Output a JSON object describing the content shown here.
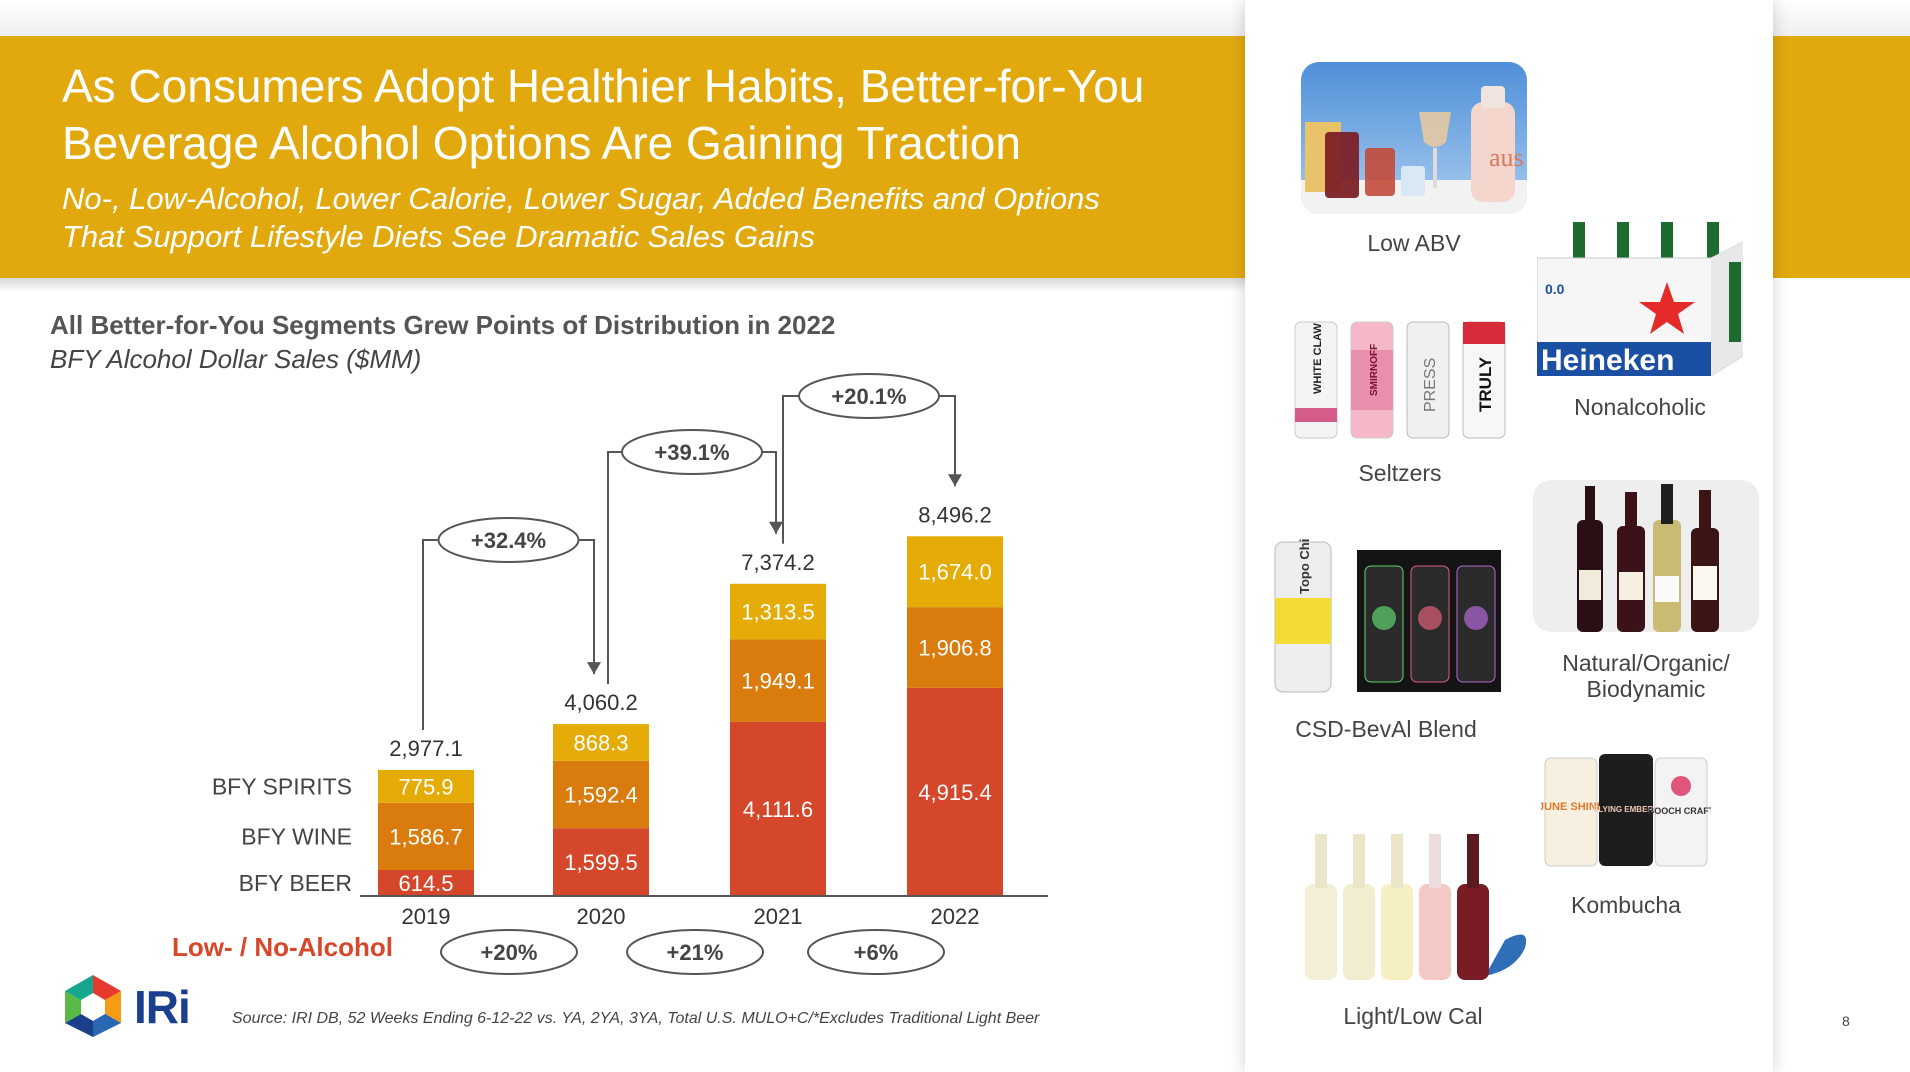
{
  "header": {
    "title": "As Consumers Adopt Healthier Habits, Better-for-You Beverage Alcohol Options Are Gaining Traction",
    "subtitle": "No-, Low-Alcohol, Lower Calorie, Lower Sugar, Added Benefits and Options That Support Lifestyle Diets See Dramatic Sales Gains"
  },
  "chart_data": {
    "type": "bar",
    "stacked": true,
    "title": "All Better-for-You Segments Grew Points of Distribution in 2022",
    "subtitle": "BFY Alcohol Dollar Sales ($MM)",
    "categories": [
      "2019",
      "2020",
      "2021",
      "2022"
    ],
    "series": [
      {
        "name": "BFY BEER",
        "color": "#d4472b",
        "values": [
          614.5,
          1599.5,
          4111.6,
          4915.4
        ],
        "labels": [
          "614.5",
          "1,599.5",
          "4,111.6",
          "4,915.4"
        ]
      },
      {
        "name": "BFY WINE",
        "color": "#d97c0d",
        "values": [
          1586.7,
          1592.4,
          1949.1,
          1906.8
        ],
        "labels": [
          "1,586.7",
          "1,592.4",
          "1,949.1",
          "1,906.8"
        ]
      },
      {
        "name": "BFY SPIRITS",
        "color": "#e5ac08",
        "values": [
          775.9,
          868.3,
          1313.5,
          1674.0
        ],
        "labels": [
          "775.9",
          "868.3",
          "1,313.5",
          "1,674.0"
        ]
      }
    ],
    "totals": [
      "2,977.1",
      "4,060.2",
      "7,374.2",
      "8,496.2"
    ],
    "growth": [
      "+32.4%",
      "+39.1%",
      "+20.1%"
    ],
    "low_no_label": "Low- / No-Alcohol",
    "low_no_growth": [
      "+20%",
      "+21%",
      "+6%"
    ],
    "ylim": [
      0,
      9000
    ]
  },
  "footer": {
    "source": "Source: IRI DB, 52 Weeks Ending 6-12-22 vs. YA, 2YA, 3YA, Total U.S. MULO+C/*Excludes Traditional Light Beer",
    "page": "8",
    "logo_text": "IRi"
  },
  "categories": {
    "low_abv": "Low ABV",
    "nonalcoholic": "Nonalcoholic",
    "seltzers": "Seltzers",
    "natural": "Natural/Organic/ Biodynamic",
    "csd": "CSD-BevAl Blend",
    "kombucha": "Kombucha",
    "lightlow": "Light/Low Cal"
  },
  "images": {
    "seltzer_brands": [
      "WHITE CLAW",
      "SMIRNOFF",
      "PRESS",
      "TRULY"
    ],
    "heineken_brand": "Heineken",
    "heineken_zero": "0.0",
    "kombucha_brands": [
      "JUNE SHINE",
      "FLYING EMBERS",
      "BOOCH CRAFT"
    ],
    "csd_brand": "Topo Chico"
  },
  "colors": {
    "banner": "#e2a90f",
    "beer": "#d4472b",
    "wine": "#d97c0d",
    "spirits": "#e5ac08",
    "low_no": "#d9472a"
  }
}
